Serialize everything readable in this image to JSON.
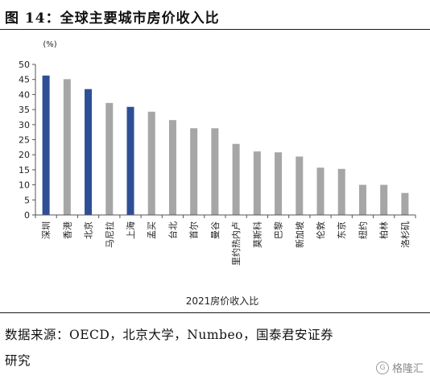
{
  "figure": {
    "title": "图 14：全球主要城市房价收入比"
  },
  "chart_data": {
    "type": "bar",
    "unit": "(%)",
    "xlabel": "2021房价收入比",
    "ylabel": "",
    "ylim": [
      0,
      50
    ],
    "yticks": [
      0,
      5,
      10,
      15,
      20,
      25,
      30,
      35,
      40,
      45,
      50
    ],
    "grid": false,
    "categories": [
      "深圳",
      "香港",
      "北京",
      "马尼拉",
      "上海",
      "孟买",
      "台北",
      "首尔",
      "曼谷",
      "里约热内卢",
      "莫斯科",
      "巴黎",
      "新加坡",
      "伦敦",
      "东京",
      "纽约",
      "柏林",
      "洛杉矶"
    ],
    "values": [
      46.3,
      45.1,
      41.8,
      37.2,
      35.9,
      34.3,
      31.5,
      28.8,
      28.8,
      23.6,
      21.1,
      20.8,
      19.4,
      15.7,
      15.3,
      10.0,
      10.0,
      7.3
    ],
    "colors": {
      "highlight": "#2e4f96",
      "default": "#a6a6a6"
    },
    "highlight": [
      true,
      false,
      true,
      false,
      true,
      false,
      false,
      false,
      false,
      false,
      false,
      false,
      false,
      false,
      false,
      false,
      false,
      false
    ]
  },
  "footer": {
    "source_line1": "数据来源：OECD，北京大学，Numbeo，国泰君安证券",
    "source_line2": "研究",
    "watermark": "格隆汇"
  }
}
